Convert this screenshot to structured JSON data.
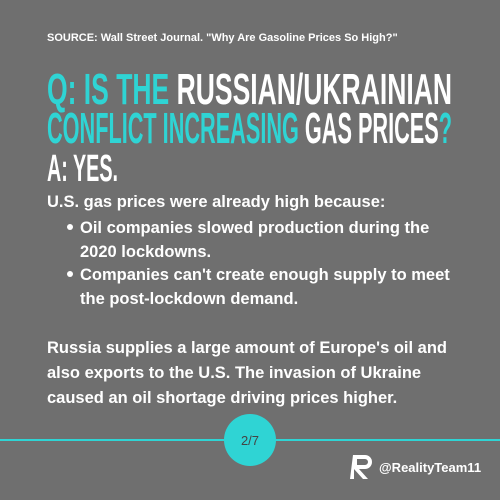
{
  "source": "SOURCE: Wall Street Journal. \"Why Are Gasoline Prices So High?\"",
  "heading": {
    "q_prefix": "Q: IS THE",
    "topic": "RUSSIAN/UKRAINIAN",
    "verb": "CONFLICT INCREASING",
    "object": "GAS PRICES",
    "question_mark": "?",
    "answer": "A: YES."
  },
  "intro": "U.S. gas prices were already high because:",
  "bullets": [
    [
      "Oil companies slowed production during the",
      "2020 lockdowns."
    ],
    [
      "Companies can't create enough supply to meet",
      "the post-lockdown demand."
    ]
  ],
  "paragraph": [
    "Russia supplies a large amount of Europe's oil and",
    "also exports to the U.S. The invasion of Ukraine",
    "caused an oil shortage driving prices higher."
  ],
  "page": "2/7",
  "handle": "@RealityTeam11"
}
